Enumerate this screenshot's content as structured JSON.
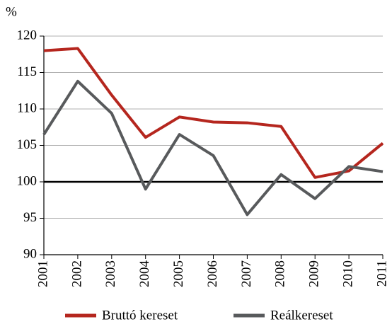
{
  "chart_data": {
    "type": "line",
    "y_label": "%",
    "x": [
      "2001",
      "2002",
      "2003",
      "2004",
      "2005",
      "2006",
      "2007",
      "2008",
      "2009",
      "2010",
      "2011"
    ],
    "series": [
      {
        "name": "Bruttó kereset",
        "color": "#b5261e",
        "values": [
          118.0,
          118.3,
          111.9,
          106.1,
          108.9,
          108.2,
          108.1,
          107.6,
          100.6,
          101.5,
          105.3
        ]
      },
      {
        "name": "Reálkereset",
        "color": "#585a5c",
        "values": [
          106.5,
          113.8,
          109.4,
          99.0,
          106.5,
          103.6,
          95.5,
          101.0,
          97.7,
          102.1,
          101.4
        ]
      }
    ],
    "ylim": [
      90,
      120
    ],
    "yticks": [
      90,
      95,
      100,
      105,
      110,
      115,
      120
    ],
    "grid": true,
    "reference_line": 100,
    "legend": "bottom"
  }
}
